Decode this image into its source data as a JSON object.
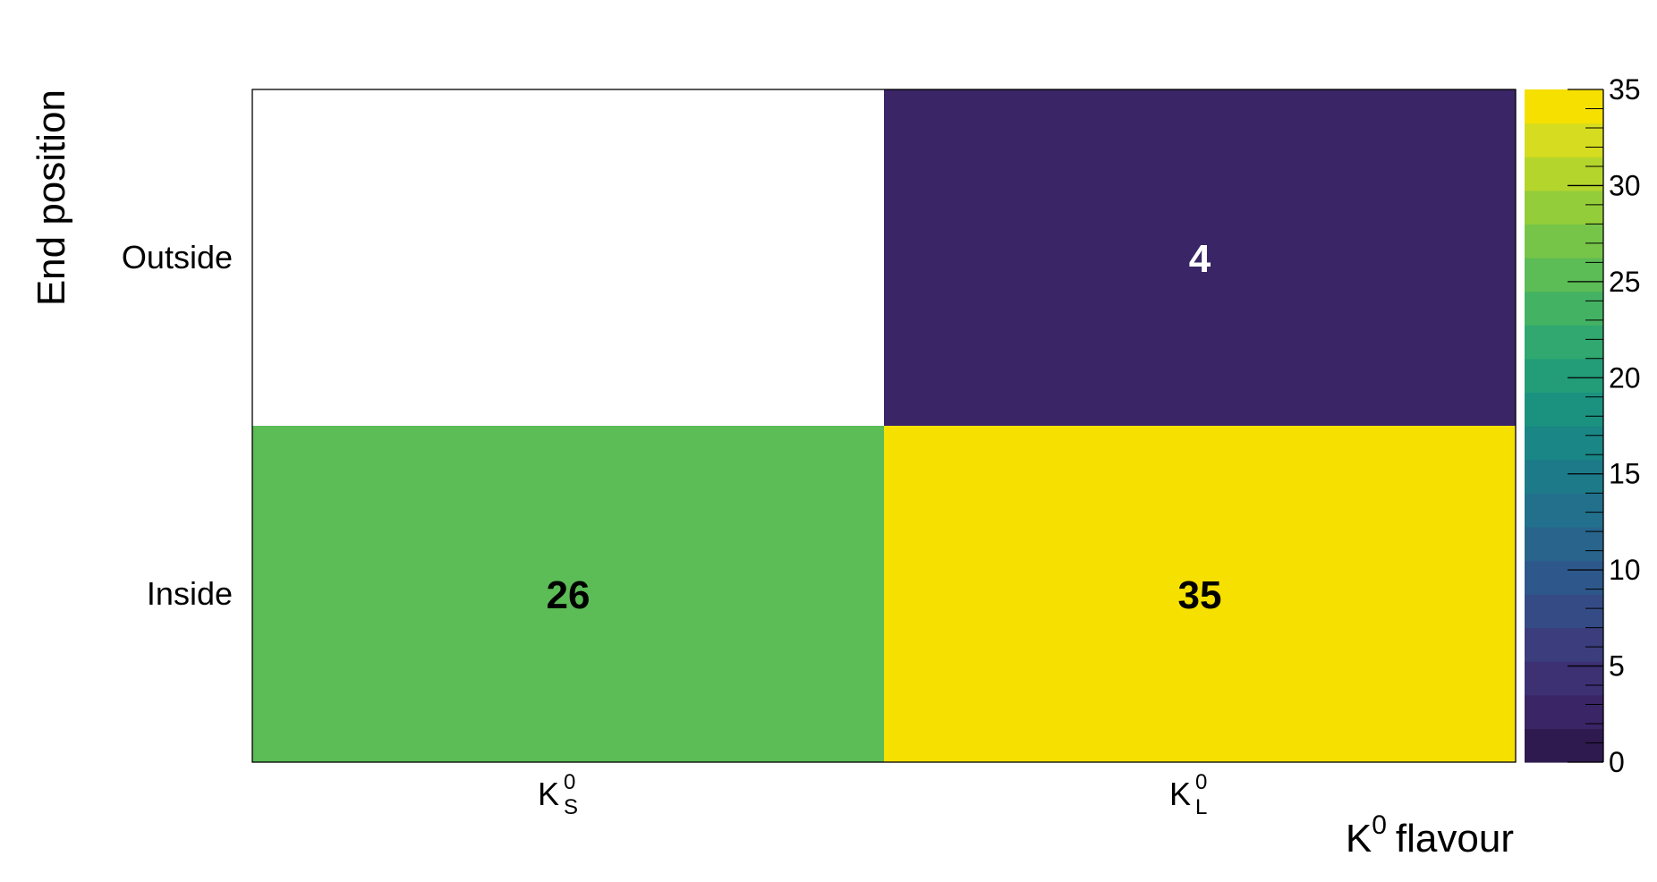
{
  "chart_data": {
    "type": "heatmap",
    "xlabel": "flavour",
    "xlabel_prefix": "K",
    "xlabel_sup": "0",
    "ylabel": "End position",
    "x_categories": [
      {
        "base": "K",
        "sup": "0",
        "sub": "S"
      },
      {
        "base": "K",
        "sup": "0",
        "sub": "L"
      }
    ],
    "y_categories": [
      "Inside",
      "Outside"
    ],
    "cells": [
      {
        "x": 0,
        "y": 0,
        "value": 26,
        "label": "26"
      },
      {
        "x": 1,
        "y": 0,
        "value": 35,
        "label": "35"
      },
      {
        "x": 1,
        "y": 1,
        "value": 4,
        "label": "4"
      }
    ],
    "colorbar": {
      "min": 0,
      "max": 35,
      "ticks": [
        "0",
        "5",
        "10",
        "15",
        "20",
        "25",
        "30",
        "35"
      ],
      "levels": 20,
      "palette": "viridis"
    },
    "colors": {
      "viridis": [
        "#1f0f33",
        "#2f1a4f",
        "#3a2566",
        "#3d3073",
        "#3b3d7c",
        "#354b86",
        "#2e588b",
        "#28648c",
        "#22708c",
        "#1d7b89",
        "#1a8685",
        "#1b9280",
        "#229d78",
        "#30a86f",
        "#44b263",
        "#5cbc56",
        "#76c548",
        "#94cd3a",
        "#b4d52c",
        "#d6dc1f",
        "#f5e000"
      ]
    }
  }
}
